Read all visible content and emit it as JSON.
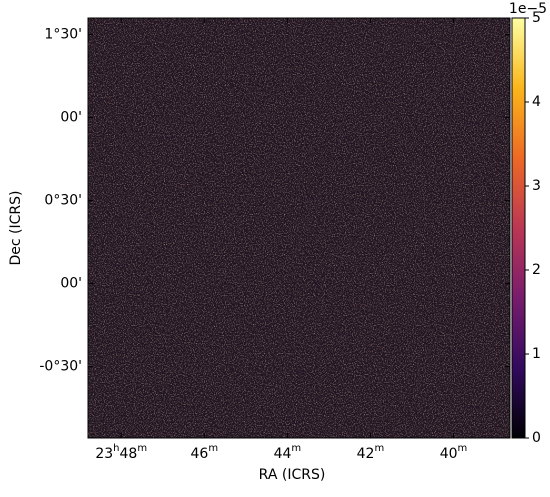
{
  "chart_data": {
    "type": "image",
    "xlabel": "RA (ICRS)",
    "ylabel": "Dec (ICRS)",
    "xlim": [
      357.2,
      354.66
    ],
    "ylim": [
      -0.93,
      1.6
    ],
    "xticks": [
      {
        "value": 357,
        "label": "23h48m"
      },
      {
        "value": 356.5,
        "label": "46m"
      },
      {
        "value": 356,
        "label": "44m"
      },
      {
        "value": 355.5,
        "label": "42m"
      },
      {
        "value": 355,
        "label": "40m"
      }
    ],
    "yticks": [
      {
        "value": 1.5,
        "label": "1°30'"
      },
      {
        "value": 1,
        "label": "00'"
      },
      {
        "value": 0.5,
        "label": "0°30'"
      },
      {
        "value": 0,
        "label": "00'"
      },
      {
        "value": -0.5,
        "label": "-0°30'"
      }
    ],
    "colorbar": {
      "label": "1e−5",
      "clim": [
        0,
        5
      ],
      "ticks": [
        0,
        1,
        2,
        3,
        4,
        5
      ],
      "colormap": [
        "#000004",
        "#320a5e",
        "#781c6d",
        "#bb3754",
        "#ed6925",
        "#fbb61a",
        "#fcffa4"
      ]
    }
  }
}
